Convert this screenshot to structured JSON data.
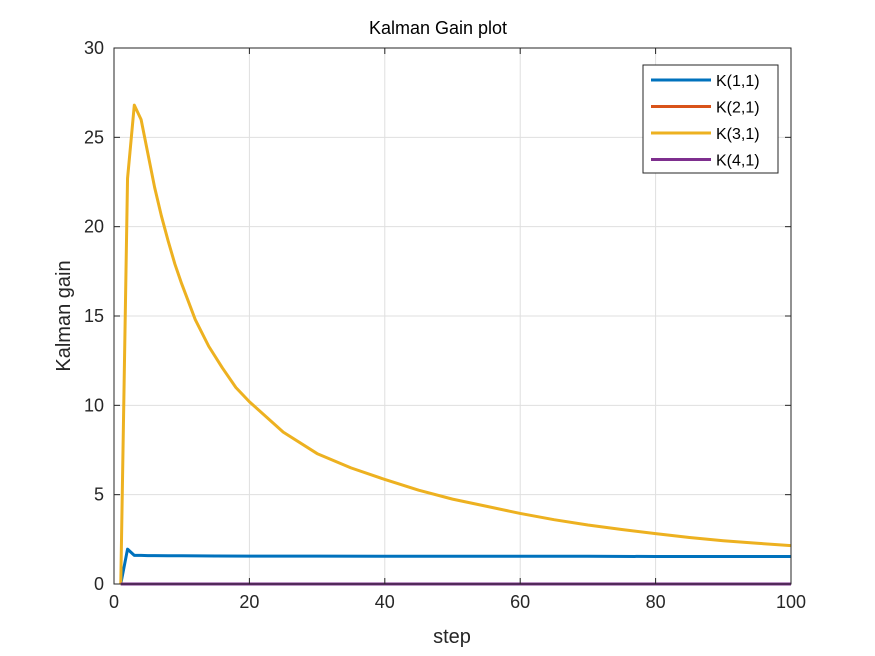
{
  "chart_data": {
    "type": "line",
    "title": "Kalman Gain plot",
    "xlabel": "step",
    "ylabel": "Kalman gain",
    "xlim": [
      0,
      100
    ],
    "ylim": [
      0,
      30
    ],
    "xticks": [
      0,
      20,
      40,
      60,
      80,
      100
    ],
    "yticks": [
      0,
      5,
      10,
      15,
      20,
      25,
      30
    ],
    "grid": true,
    "legend_position": "top-right",
    "series": [
      {
        "name": "K(1,1)",
        "color": "#0072BD",
        "x": [
          1,
          2,
          3,
          4,
          5,
          6,
          8,
          10,
          15,
          20,
          30,
          40,
          50,
          60,
          70,
          80,
          90,
          100
        ],
        "y": [
          0,
          1.95,
          1.6,
          1.6,
          1.59,
          1.59,
          1.58,
          1.58,
          1.57,
          1.56,
          1.56,
          1.55,
          1.55,
          1.55,
          1.55,
          1.54,
          1.54,
          1.54
        ]
      },
      {
        "name": "K(2,1)",
        "color": "#D95319",
        "x": [
          1,
          100
        ],
        "y": [
          0,
          0
        ]
      },
      {
        "name": "K(3,1)",
        "color": "#EDB120",
        "x": [
          1,
          2,
          3,
          4,
          5,
          6,
          7,
          8,
          9,
          10,
          12,
          14,
          16,
          18,
          20,
          25,
          30,
          35,
          40,
          45,
          50,
          55,
          60,
          65,
          70,
          75,
          80,
          85,
          90,
          95,
          100
        ],
        "y": [
          0,
          22.7,
          26.8,
          26.0,
          24.1,
          22.2,
          20.6,
          19.2,
          17.9,
          16.8,
          14.8,
          13.3,
          12.1,
          11.0,
          10.2,
          8.5,
          7.3,
          6.5,
          5.85,
          5.25,
          4.75,
          4.35,
          3.95,
          3.6,
          3.3,
          3.05,
          2.82,
          2.6,
          2.42,
          2.28,
          2.15
        ]
      },
      {
        "name": "K(4,1)",
        "color": "#7E2F8E",
        "x": [
          1,
          100
        ],
        "y": [
          0,
          0
        ]
      }
    ]
  }
}
